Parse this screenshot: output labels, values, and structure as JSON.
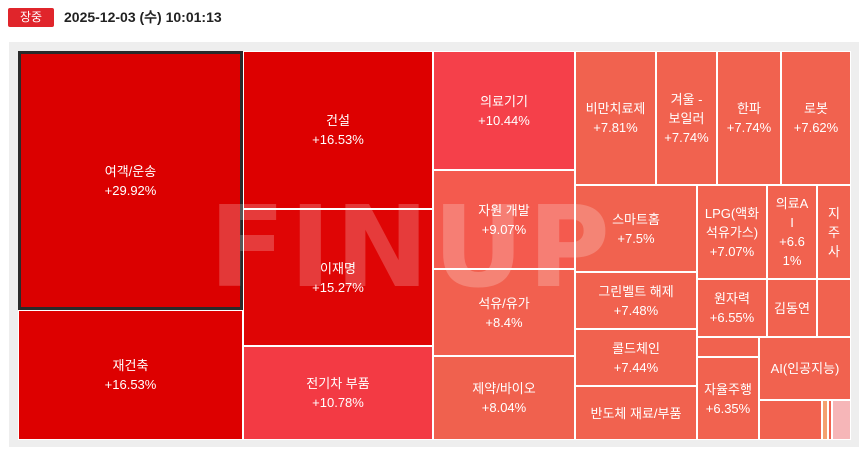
{
  "header": {
    "status_badge": "장중",
    "timestamp": "2025-12-03 (수) 10:01:13"
  },
  "watermark": "FINUP",
  "tiles": [
    {
      "name": "여객/운송",
      "change": "+29.92%",
      "color": "#db0000",
      "selected": true
    },
    {
      "name": "재건축",
      "change": "+16.53%",
      "color": "#dd0000"
    },
    {
      "name": "건설",
      "change": "+16.53%",
      "color": "#dd0000"
    },
    {
      "name": "이재명",
      "change": "+15.27%",
      "color": "#df0505"
    },
    {
      "name": "전기차 부품",
      "change": "+10.78%",
      "color": "#f33a44"
    },
    {
      "name": "의료기기",
      "change": "+10.44%",
      "color": "#f5404a"
    },
    {
      "name": "자원 개발",
      "change": "+9.07%",
      "color": "#f45a4e"
    },
    {
      "name": "석유/유가",
      "change": "+8.4%",
      "color": "#f2604f"
    },
    {
      "name": "제약/바이오",
      "change": "+8.04%",
      "color": "#f0614e"
    },
    {
      "name": "비만치료제",
      "change": "+7.81%",
      "color": "#f1624f"
    },
    {
      "name": "겨울 - 보일러",
      "change": "+7.74%",
      "color": "#f1624f"
    },
    {
      "name": "한파",
      "change": "+7.74%",
      "color": "#f1624f"
    },
    {
      "name": "로봇",
      "change": "+7.62%",
      "color": "#f1624f"
    },
    {
      "name": "스마트홈",
      "change": "+7.5%",
      "color": "#f1624f"
    },
    {
      "name": "LPG(액화석유가스)",
      "change": "+7.07%",
      "color": "#f1624f"
    },
    {
      "name": "의료AI",
      "change": "+6.61%",
      "color": "#f1624f"
    },
    {
      "name": "지주사",
      "change": "",
      "color": "#f1624f"
    },
    {
      "name": "그린벨트 해제",
      "change": "+7.48%",
      "color": "#f1624f"
    },
    {
      "name": "원자력",
      "change": "+6.55%",
      "color": "#f1624f"
    },
    {
      "name": "김동연",
      "change": "",
      "color": "#f1624f"
    },
    {
      "name": "콜드체인",
      "change": "+7.44%",
      "color": "#f1624f"
    },
    {
      "name": "자율주행",
      "change": "+6.35%",
      "color": "#f1624f"
    },
    {
      "name": "AI(인공지능)",
      "change": "",
      "color": "#f1624f"
    },
    {
      "name": "반도체 재료/부품",
      "change": "",
      "color": "#f1624f"
    },
    {
      "name": "",
      "change": "",
      "color": "#f1624f"
    },
    {
      "name": "",
      "change": "",
      "color": "#f1624f"
    },
    {
      "name": "",
      "change": "",
      "color": "#f4a070"
    },
    {
      "name": "",
      "change": "",
      "color": "#f6b6b8"
    }
  ]
}
